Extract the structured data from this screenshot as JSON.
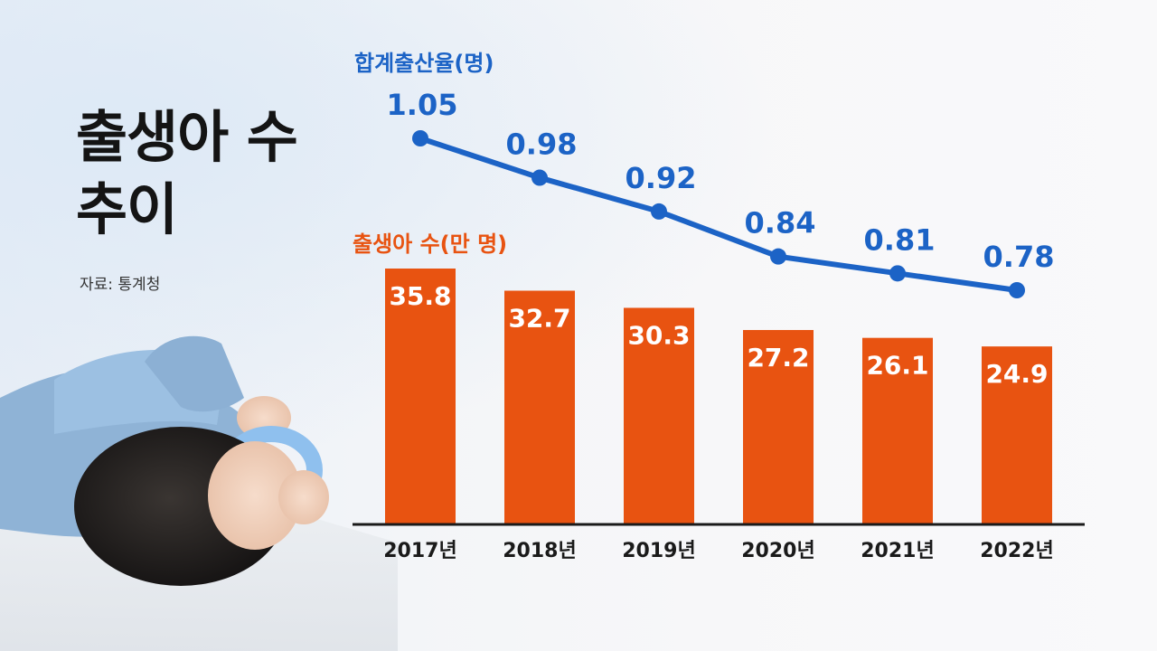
{
  "page": {
    "title_line1": "출생아 수",
    "title_line2": "추이",
    "source": "자료: 통계청"
  },
  "colors": {
    "bar": "#e85311",
    "line": "#1c63c6",
    "axis": "#1a1a1a"
  },
  "chart_data": {
    "type": "bar",
    "categories": [
      "2017년",
      "2018년",
      "2019년",
      "2020년",
      "2021년",
      "2022년"
    ],
    "series": [
      {
        "name": "출생아 수(만 명)",
        "type": "bar",
        "values": [
          35.8,
          32.7,
          30.3,
          27.2,
          26.1,
          24.9
        ],
        "labels": [
          "35.8",
          "32.7",
          "30.3",
          "27.2",
          "26.1",
          "24.9"
        ]
      },
      {
        "name": "합계출산율(명)",
        "type": "line",
        "values": [
          1.05,
          0.98,
          0.92,
          0.84,
          0.81,
          0.78
        ],
        "labels": [
          "1.05",
          "0.98",
          "0.92",
          "0.84",
          "0.81",
          "0.78"
        ]
      }
    ]
  }
}
